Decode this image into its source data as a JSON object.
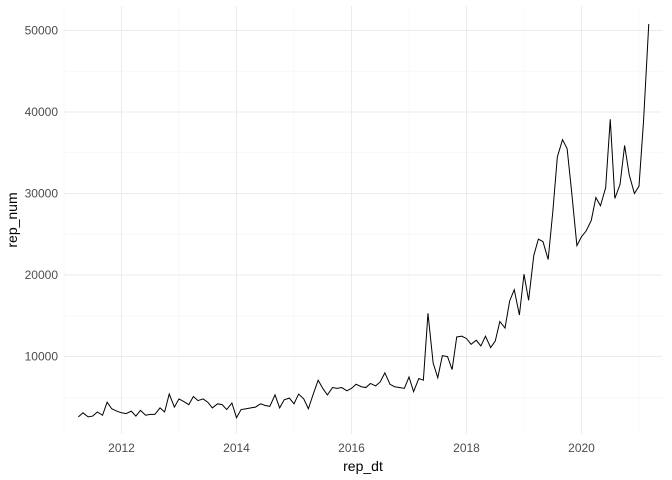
{
  "chart_data": {
    "type": "line",
    "title": "",
    "xlabel": "rep_dt",
    "ylabel": "rep_num",
    "grid": true,
    "legend": "none",
    "xlim": [
      2011.0,
      2021.4
    ],
    "ylim": [
      500,
      53000
    ],
    "x_ticks": [
      2012,
      2014,
      2016,
      2018,
      2020
    ],
    "x_tick_labels": [
      "2012",
      "2014",
      "2016",
      "2018",
      "2020"
    ],
    "y_ticks": [
      10000,
      20000,
      30000,
      40000,
      50000
    ],
    "y_tick_labels": [
      "10000",
      "20000",
      "30000",
      "40000",
      "50000"
    ],
    "line_color": "#000000",
    "series": [
      {
        "x": [
          2011.25,
          2011.33,
          2011.42,
          2011.5,
          2011.58,
          2011.67,
          2011.75,
          2011.83,
          2011.92,
          2012.0,
          2012.08,
          2012.17,
          2012.25,
          2012.33,
          2012.42,
          2012.5,
          2012.58,
          2012.67,
          2012.75,
          2012.83,
          2012.92,
          2013.0,
          2013.08,
          2013.17,
          2013.25,
          2013.33,
          2013.42,
          2013.5,
          2013.58,
          2013.67,
          2013.75,
          2013.83,
          2013.92,
          2014.0,
          2014.08,
          2014.17,
          2014.25,
          2014.33,
          2014.42,
          2014.5,
          2014.58,
          2014.67,
          2014.75,
          2014.83,
          2014.92,
          2015.0,
          2015.08,
          2015.17,
          2015.25,
          2015.33,
          2015.42,
          2015.5,
          2015.58,
          2015.67,
          2015.75,
          2015.83,
          2015.92,
          2016.0,
          2016.08,
          2016.17,
          2016.25,
          2016.33,
          2016.42,
          2016.5,
          2016.58,
          2016.67,
          2016.75,
          2016.83,
          2016.92,
          2017.0,
          2017.08,
          2017.17,
          2017.25,
          2017.33,
          2017.42,
          2017.5,
          2017.58,
          2017.67,
          2017.75,
          2017.83,
          2017.92,
          2018.0,
          2018.08,
          2018.17,
          2018.25,
          2018.33,
          2018.42,
          2018.5,
          2018.58,
          2018.67,
          2018.75,
          2018.83,
          2018.92,
          2019.0,
          2019.08,
          2019.17,
          2019.25,
          2019.33,
          2019.42,
          2019.5,
          2019.58,
          2019.67,
          2019.75,
          2019.83,
          2019.92,
          2020.0,
          2020.08,
          2020.17,
          2020.25,
          2020.33,
          2020.42,
          2020.5,
          2020.58,
          2020.67,
          2020.75,
          2020.83,
          2020.92,
          2021.0,
          2021.08,
          2021.17
        ],
        "values": [
          2600,
          3100,
          2600,
          2700,
          3200,
          2800,
          4400,
          3600,
          3300,
          3100,
          3000,
          3300,
          2700,
          3400,
          2800,
          2900,
          2900,
          3700,
          3200,
          5400,
          3800,
          4800,
          4500,
          4100,
          5100,
          4600,
          4800,
          4400,
          3700,
          4200,
          4100,
          3500,
          4300,
          2500,
          3500,
          3600,
          3700,
          3800,
          4200,
          4000,
          3900,
          5300,
          3700,
          4700,
          4900,
          4200,
          5400,
          4800,
          3600,
          5300,
          7100,
          6100,
          5300,
          6200,
          6100,
          6200,
          5800,
          6100,
          6600,
          6300,
          6200,
          6700,
          6400,
          6900,
          8000,
          6600,
          6300,
          6200,
          6100,
          7500,
          5700,
          7300,
          7100,
          15300,
          9200,
          7400,
          10100,
          10000,
          8400,
          12400,
          12500,
          12200,
          11500,
          12000,
          11300,
          12500,
          11100,
          11900,
          14300,
          13500,
          16800,
          18200,
          15100,
          20100,
          16900,
          22400,
          24400,
          24100,
          21900,
          27700,
          34500,
          36600,
          35500,
          30100,
          23600,
          24700,
          25400,
          26700,
          29500,
          28500,
          30700,
          39100,
          29400,
          31100,
          35900,
          32300,
          30000,
          30900,
          39000,
          50800
        ]
      }
    ]
  }
}
